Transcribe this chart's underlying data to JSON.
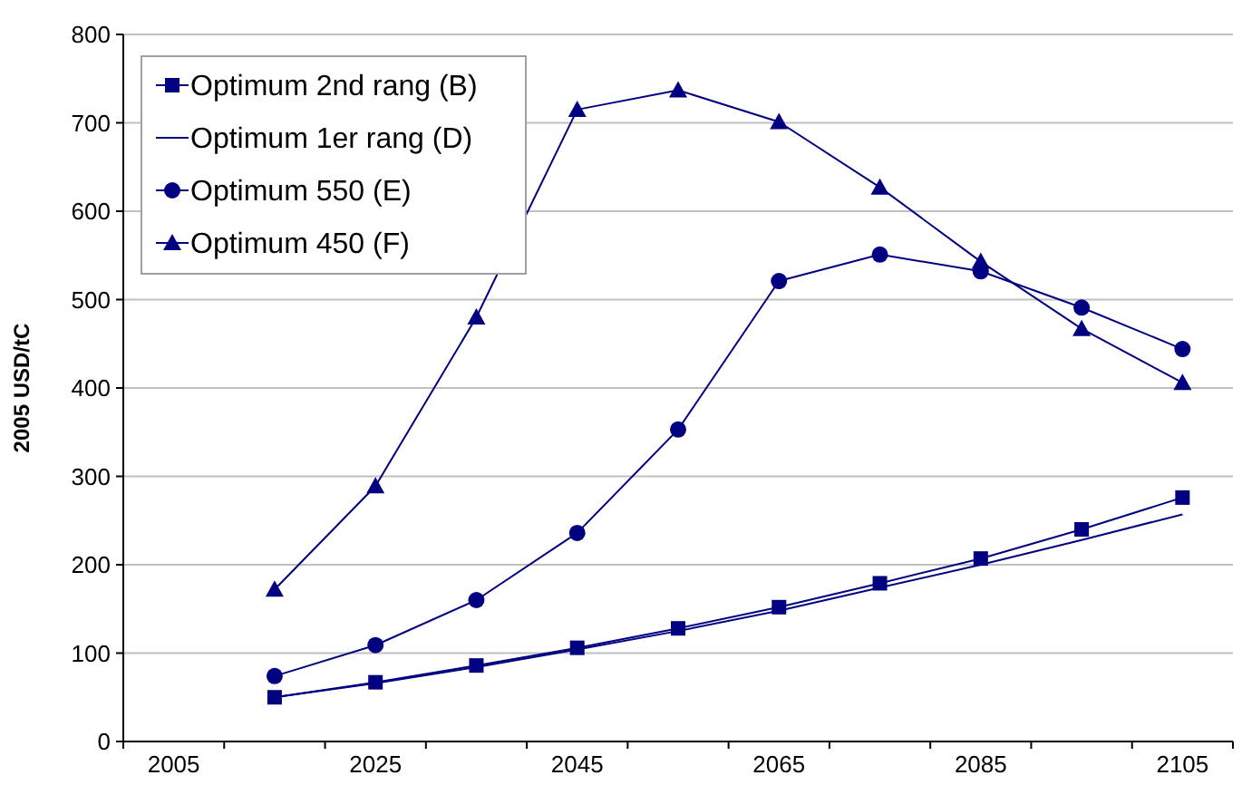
{
  "chart_data": {
    "type": "line",
    "ylabel": "2005 USD/tC",
    "categories": [
      "2005",
      null,
      "2025",
      null,
      "2045",
      null,
      "2065",
      null,
      "2085",
      null,
      "2105"
    ],
    "ylim": [
      0,
      800
    ],
    "yticks": [
      0,
      100,
      200,
      300,
      400,
      500,
      600,
      700,
      800
    ],
    "grid": "y",
    "legend": "top left",
    "series": [
      {
        "name": "Optimum 2nd rang (B)",
        "color": "#000080",
        "marker": "square",
        "values": [
          null,
          50,
          67,
          86,
          106,
          128,
          152,
          179,
          207,
          240,
          276
        ]
      },
      {
        "name": "Optimum 1er rang (D)",
        "color": "#000080",
        "marker": "none",
        "values": [
          null,
          50,
          66,
          84,
          104,
          125,
          148,
          174,
          200,
          228,
          257
        ]
      },
      {
        "name": "Optimum 550 (E)",
        "color": "#000080",
        "marker": "circle",
        "values": [
          null,
          74,
          109,
          160,
          236,
          353,
          521,
          551,
          532,
          491,
          444
        ]
      },
      {
        "name": "Optimum 450 (F)",
        "color": "#000080",
        "marker": "triangle",
        "values": [
          null,
          172,
          289,
          480,
          715,
          737,
          701,
          627,
          543,
          467,
          406
        ]
      }
    ]
  }
}
